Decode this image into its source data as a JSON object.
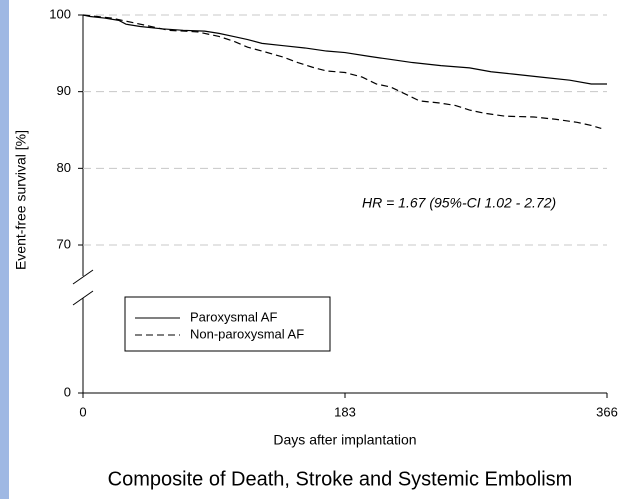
{
  "chart_data": {
    "type": "line",
    "step": true,
    "title": "Composite of Death, Stroke and Systemic Embolism",
    "xlabel": "Days after implantation",
    "ylabel": "Event-free survival [%]",
    "annotation": "HR = 1.67 (95%-CI 1.02 - 2.72)",
    "xlim": [
      0,
      366
    ],
    "xticks": [
      0,
      183,
      366
    ],
    "ylim": [
      0,
      100
    ],
    "yticks": [
      0,
      70,
      80,
      90,
      100
    ],
    "grid": true,
    "series": [
      {
        "name": "Paroxysmal AF",
        "color": "#000000",
        "dash": false,
        "x": [
          0,
          5,
          15,
          25,
          30,
          40,
          55,
          70,
          85,
          95,
          105,
          115,
          125,
          140,
          155,
          170,
          183,
          200,
          215,
          230,
          250,
          270,
          285,
          300,
          320,
          340,
          355,
          366
        ],
        "values": [
          100,
          99.8,
          99.6,
          99.3,
          98.8,
          98.5,
          98.2,
          98.0,
          97.9,
          97.6,
          97.2,
          96.8,
          96.3,
          96.0,
          95.7,
          95.3,
          95.1,
          94.6,
          94.2,
          93.8,
          93.4,
          93.1,
          92.6,
          92.3,
          91.9,
          91.5,
          91.0,
          91.0
        ]
      },
      {
        "name": "Non-paroxysmal AF",
        "color": "#000000",
        "dash": true,
        "x": [
          0,
          10,
          20,
          30,
          45,
          60,
          80,
          95,
          105,
          115,
          125,
          140,
          150,
          160,
          170,
          183,
          195,
          205,
          215,
          225,
          235,
          250,
          260,
          270,
          280,
          295,
          315,
          330,
          345,
          355,
          362
        ],
        "values": [
          100,
          99.8,
          99.6,
          99.2,
          98.6,
          98.0,
          97.8,
          97.2,
          96.6,
          95.8,
          95.3,
          94.5,
          93.8,
          93.2,
          92.7,
          92.5,
          91.9,
          91.0,
          90.6,
          89.7,
          88.8,
          88.5,
          88.2,
          87.6,
          87.2,
          86.8,
          86.7,
          86.4,
          86.0,
          85.6,
          85.2
        ]
      }
    ]
  }
}
